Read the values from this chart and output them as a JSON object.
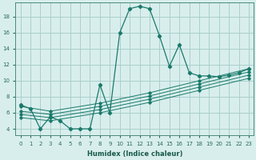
{
  "xlabel": "Humidex (Indice chaleur)",
  "bg_color": "#d8eeed",
  "grid_color": "#aacfcc",
  "line_color": "#1a7a6a",
  "xlim": [
    -0.5,
    23.5
  ],
  "ylim": [
    3.2,
    19.8
  ],
  "xticks": [
    0,
    1,
    2,
    3,
    4,
    5,
    6,
    7,
    8,
    9,
    10,
    11,
    12,
    13,
    14,
    15,
    16,
    17,
    18,
    19,
    20,
    21,
    22,
    23
  ],
  "yticks": [
    4,
    6,
    8,
    10,
    12,
    14,
    16,
    18
  ],
  "line1_x": [
    0,
    1,
    2,
    3,
    4,
    5,
    6,
    7,
    8,
    9,
    10,
    11,
    12,
    13,
    14,
    15,
    16,
    17,
    18,
    19,
    20,
    21,
    22,
    23
  ],
  "line1_y": [
    7.0,
    6.5,
    4.0,
    5.5,
    5.0,
    4.0,
    4.0,
    4.0,
    9.5,
    6.0,
    16.0,
    19.0,
    19.3,
    19.0,
    15.6,
    11.8,
    14.5,
    11.0,
    10.6,
    10.6,
    10.5,
    10.7,
    11.0,
    11.5
  ],
  "line2_x": [
    0,
    3,
    8,
    13,
    18,
    23
  ],
  "line2_y": [
    6.8,
    6.2,
    7.2,
    8.5,
    10.0,
    11.5
  ],
  "line3_x": [
    0,
    3,
    8,
    13,
    18,
    23
  ],
  "line3_y": [
    6.2,
    5.8,
    6.8,
    8.1,
    9.6,
    11.1
  ],
  "line4_x": [
    0,
    3,
    8,
    13,
    18,
    23
  ],
  "line4_y": [
    5.8,
    5.4,
    6.4,
    7.7,
    9.2,
    10.7
  ],
  "line5_x": [
    0,
    3,
    8,
    13,
    18,
    23
  ],
  "line5_y": [
    5.4,
    5.0,
    6.0,
    7.3,
    8.8,
    10.3
  ]
}
